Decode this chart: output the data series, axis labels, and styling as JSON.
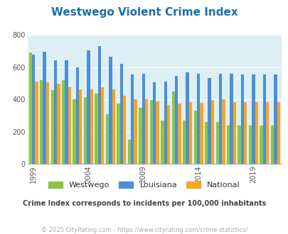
{
  "title": "Westwego Violent Crime Index",
  "title_color": "#1a6fa8",
  "subtitle": "Crime Index corresponds to incidents per 100,000 inhabitants",
  "subtitle_color": "#444444",
  "footer": "© 2025 CityRating.com - https://www.cityrating.com/crime-statistics/",
  "footer_color": "#aaaaaa",
  "years": [
    1999,
    2000,
    2001,
    2002,
    2003,
    2004,
    2005,
    2006,
    2007,
    2008,
    2009,
    2010,
    2011,
    2012,
    2013,
    2014,
    2015,
    2016,
    2017,
    2018,
    2019,
    2020,
    2021
  ],
  "westwego": [
    690,
    520,
    460,
    520,
    400,
    415,
    435,
    310,
    375,
    150,
    350,
    395,
    270,
    450,
    270,
    330,
    260,
    260,
    240,
    240,
    240,
    240,
    240
  ],
  "louisiana": [
    680,
    695,
    645,
    645,
    600,
    705,
    730,
    665,
    620,
    555,
    560,
    505,
    510,
    545,
    570,
    560,
    535,
    560,
    560,
    555,
    555,
    555,
    555
  ],
  "national": [
    510,
    505,
    500,
    475,
    465,
    465,
    475,
    465,
    425,
    400,
    400,
    390,
    365,
    375,
    385,
    380,
    395,
    400,
    385,
    385,
    385,
    385,
    385
  ],
  "westwego_color": "#8dc63f",
  "louisiana_color": "#4a90d9",
  "national_color": "#f5a623",
  "bar_width": 0.28,
  "ylim": [
    0,
    800
  ],
  "yticks": [
    0,
    200,
    400,
    600,
    800
  ],
  "xtick_years": [
    1999,
    2004,
    2009,
    2014,
    2019
  ],
  "bg_color": "#ddeef5",
  "fig_bg": "#ffffff",
  "legend_labels": [
    "Westwego",
    "Louisiana",
    "National"
  ]
}
